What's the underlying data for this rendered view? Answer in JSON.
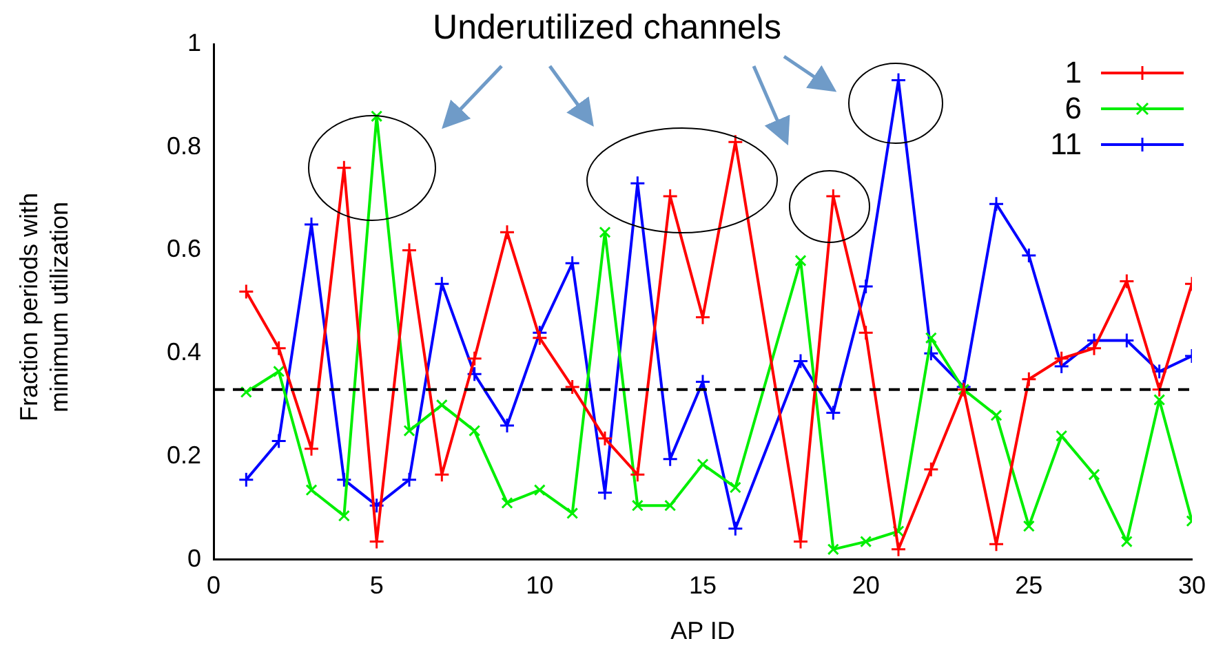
{
  "chart_data": {
    "type": "line",
    "annotations": [
      "Underutilized channels"
    ],
    "xlabel": "AP ID",
    "ylabel": "Fraction periods with\nminimum utilization",
    "x": [
      1,
      2,
      3,
      4,
      5,
      6,
      7,
      8,
      9,
      10,
      11,
      12,
      13,
      14,
      15,
      16,
      17,
      18,
      19,
      20,
      21,
      22,
      23,
      24,
      25,
      26,
      27,
      28,
      29,
      30
    ],
    "xlim": [
      0,
      30
    ],
    "xticks": [
      0,
      5,
      10,
      15,
      20,
      25,
      30
    ],
    "ylim": [
      0,
      1
    ],
    "yticks": [
      0,
      0.2,
      0.4,
      0.6,
      0.8,
      1
    ],
    "grid": false,
    "legend": "top right",
    "line_style": "solid",
    "ref_lines": [
      {
        "axis": "y",
        "value": 0.33,
        "color": "#000000",
        "line_style": "dashed"
      }
    ],
    "series": [
      {
        "name": "1",
        "color": "#ff0000",
        "marker": "cross",
        "values": [
          0.52,
          0.41,
          0.215,
          0.76,
          0.035,
          0.6,
          0.165,
          0.39,
          0.635,
          0.43,
          0.335,
          0.235,
          0.165,
          0.705,
          0.47,
          0.81,
          null,
          0.035,
          0.705,
          0.44,
          0.02,
          0.175,
          0.33,
          0.03,
          0.35,
          0.39,
          0.41,
          0.54,
          0.33,
          0.535
        ]
      },
      {
        "name": "6",
        "color": "#00ee00",
        "marker": "x",
        "values": [
          0.325,
          0.365,
          0.135,
          0.085,
          0.86,
          0.25,
          0.3,
          0.25,
          0.11,
          0.135,
          0.09,
          0.635,
          0.105,
          0.105,
          0.185,
          0.14,
          null,
          0.58,
          0.02,
          0.035,
          0.055,
          0.43,
          0.33,
          0.28,
          0.065,
          0.24,
          0.165,
          0.035,
          0.31,
          0.075
        ]
      },
      {
        "name": "11",
        "color": "#0000ff",
        "marker": "cross",
        "values": [
          0.155,
          0.23,
          0.65,
          0.155,
          0.105,
          0.155,
          0.535,
          0.36,
          0.26,
          0.44,
          0.575,
          0.13,
          0.73,
          0.195,
          0.345,
          0.06,
          null,
          0.385,
          0.285,
          0.53,
          0.93,
          0.4,
          0.335,
          0.69,
          0.59,
          0.375,
          0.425,
          0.425,
          0.365,
          0.395
        ]
      }
    ]
  }
}
